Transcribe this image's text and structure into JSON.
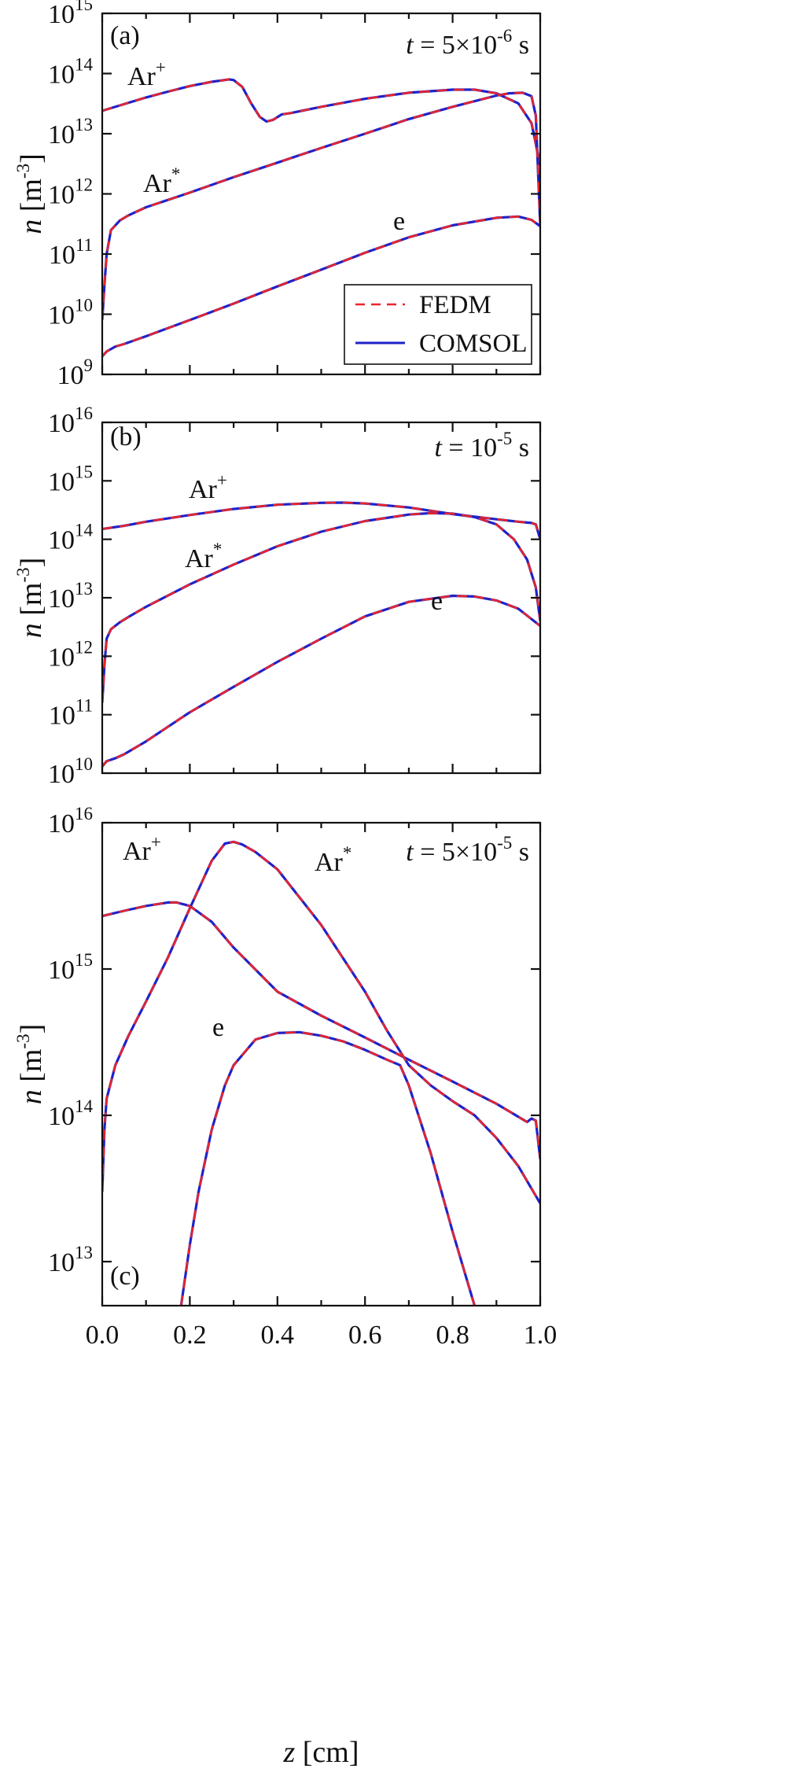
{
  "legend": {
    "entries": [
      {
        "label": "FEDM",
        "color": "#e8242c",
        "style": "dashed"
      },
      {
        "label": "COMSOL",
        "color": "#1f22c8",
        "style": "solid"
      }
    ]
  },
  "x_axis": {
    "label_italic": "z",
    "label_unit": " [cm]",
    "ticks": [
      "0.0",
      "0.2",
      "0.4",
      "0.6",
      "0.8",
      "1.0"
    ]
  },
  "chart_data": [
    {
      "type": "line",
      "panel_label": "(a)",
      "time_label": {
        "t": "t",
        "eq": " = 5×10",
        "exp": "-6",
        "unit": "  s"
      },
      "ylabel": {
        "italic": "n",
        "unit": " [m",
        "exp": "-3",
        "close": "]"
      },
      "xlabel": "z [cm]",
      "xlim": [
        0,
        1
      ],
      "ylim": [
        1000000000.0,
        1000000000000000.0
      ],
      "yscale": "log",
      "ytick_exponents": [
        9,
        10,
        11,
        12,
        13,
        14,
        15
      ],
      "legend_position": "bottom-right",
      "series": [
        {
          "name": "Ar+",
          "label_base": "Ar",
          "label_sup": "+",
          "x": [
            0,
            0.05,
            0.1,
            0.15,
            0.2,
            0.25,
            0.29,
            0.3,
            0.32,
            0.34,
            0.36,
            0.375,
            0.39,
            0.41,
            0.43,
            0.5,
            0.6,
            0.7,
            0.8,
            0.85,
            0.9,
            0.95,
            0.98,
            1.0
          ],
          "y": [
            24000000000000.0,
            31000000000000.0,
            40000000000000.0,
            50000000000000.0,
            62000000000000.0,
            73000000000000.0,
            80000000000000.0,
            78000000000000.0,
            60000000000000.0,
            32000000000000.0,
            19000000000000.0,
            16000000000000.0,
            17000000000000.0,
            21000000000000.0,
            22000000000000.0,
            28000000000000.0,
            38000000000000.0,
            48000000000000.0,
            54000000000000.0,
            54000000000000.0,
            47000000000000.0,
            32000000000000.0,
            15000000000000.0,
            3000000000000.0
          ]
        },
        {
          "name": "Ar*",
          "label_base": "Ar",
          "label_sup": "*",
          "x": [
            0,
            0.005,
            0.01,
            0.02,
            0.04,
            0.06,
            0.1,
            0.2,
            0.3,
            0.4,
            0.5,
            0.6,
            0.7,
            0.8,
            0.9,
            0.93,
            0.96,
            0.98,
            0.99,
            1.0
          ],
          "y": [
            8000000000.0,
            30000000000.0,
            100000000000.0,
            250000000000.0,
            360000000000.0,
            440000000000.0,
            600000000000.0,
            1050000000000.0,
            1900000000000.0,
            3300000000000.0,
            5800000000000.0,
            10000000000000.0,
            17500000000000.0,
            28000000000000.0,
            43000000000000.0,
            47000000000000.0,
            48000000000000.0,
            42000000000000.0,
            20000000000000.0,
            300000000000.0
          ]
        },
        {
          "name": "e",
          "label_base": "e",
          "label_sup": "",
          "x": [
            0,
            0.01,
            0.03,
            0.05,
            0.1,
            0.2,
            0.3,
            0.4,
            0.5,
            0.6,
            0.7,
            0.8,
            0.9,
            0.95,
            0.98,
            1.0
          ],
          "y": [
            2000000000.0,
            2400000000.0,
            2900000000.0,
            3200000000.0,
            4300000000.0,
            8000000000.0,
            15000000000.0,
            29000000000.0,
            55000000000.0,
            105000000000.0,
            190000000000.0,
            300000000000.0,
            400000000000.0,
            420000000000.0,
            370000000000.0,
            290000000000.0
          ]
        }
      ]
    },
    {
      "type": "line",
      "panel_label": "(b)",
      "time_label": {
        "t": "t",
        "eq": " = 10",
        "exp": "-5",
        "unit": " s"
      },
      "ylabel": {
        "italic": "n",
        "unit": " [m",
        "exp": "-3",
        "close": "]"
      },
      "xlabel": "z [cm]",
      "xlim": [
        0,
        1
      ],
      "ylim": [
        10000000000.0,
        1e+16
      ],
      "yscale": "log",
      "ytick_exponents": [
        10,
        11,
        12,
        13,
        14,
        15,
        16
      ],
      "series": [
        {
          "name": "Ar+",
          "label_base": "Ar",
          "label_sup": "+",
          "x": [
            0,
            0.05,
            0.1,
            0.2,
            0.3,
            0.4,
            0.5,
            0.55,
            0.6,
            0.7,
            0.8,
            0.9,
            0.95,
            0.98,
            0.99,
            1.0
          ],
          "y": [
            150000000000000.0,
            170000000000000.0,
            200000000000000.0,
            260000000000000.0,
            330000000000000.0,
            390000000000000.0,
            420000000000000.0,
            425000000000000.0,
            410000000000000.0,
            350000000000000.0,
            270000000000000.0,
            220000000000000.0,
            200000000000000.0,
            190000000000000.0,
            180000000000000.0,
            100000000000000.0
          ]
        },
        {
          "name": "Ar*",
          "label_base": "Ar",
          "label_sup": "*",
          "x": [
            0,
            0.005,
            0.01,
            0.02,
            0.04,
            0.06,
            0.1,
            0.2,
            0.3,
            0.4,
            0.5,
            0.6,
            0.7,
            0.75,
            0.8,
            0.85,
            0.9,
            0.94,
            0.97,
            0.99,
            1.0
          ],
          "y": [
            160000000000.0,
            700000000000.0,
            2000000000000.0,
            2900000000000.0,
            3800000000000.0,
            4700000000000.0,
            7000000000000.0,
            17000000000000.0,
            37000000000000.0,
            76000000000000.0,
            135000000000000.0,
            205000000000000.0,
            265000000000000.0,
            280000000000000.0,
            275000000000000.0,
            240000000000000.0,
            180000000000000.0,
            100000000000000.0,
            45000000000000.0,
            15000000000000.0,
            4000000000000.0
          ]
        },
        {
          "name": "e",
          "label_base": "e",
          "label_sup": "",
          "x": [
            0,
            0.01,
            0.03,
            0.05,
            0.1,
            0.2,
            0.3,
            0.4,
            0.5,
            0.6,
            0.7,
            0.8,
            0.85,
            0.9,
            0.95,
            1.0
          ],
          "y": [
            13000000000.0,
            16000000000.0,
            18000000000.0,
            21000000000.0,
            35000000000.0,
            110000000000.0,
            300000000000.0,
            800000000000.0,
            2000000000000.0,
            4800000000000.0,
            8500000000000.0,
            10800000000000.0,
            10500000000000.0,
            9000000000000.0,
            6500000000000.0,
            3300000000000.0
          ]
        }
      ]
    },
    {
      "type": "line",
      "panel_label": "(c)",
      "time_label": {
        "t": "t",
        "eq": " = 5×10",
        "exp": "-5",
        "unit": " s"
      },
      "ylabel": {
        "italic": "n",
        "unit": " [m",
        "exp": "-3",
        "close": "]"
      },
      "xlabel": "z [cm]",
      "xlim": [
        0,
        1
      ],
      "ylim": [
        5000000000000.0,
        1e+16
      ],
      "yscale": "log",
      "ytick_exponents": [
        13,
        14,
        15,
        16
      ],
      "series": [
        {
          "name": "Ar+",
          "label_base": "Ar",
          "label_sup": "+",
          "x": [
            0,
            0.05,
            0.1,
            0.15,
            0.17,
            0.2,
            0.25,
            0.3,
            0.4,
            0.5,
            0.6,
            0.7,
            0.8,
            0.9,
            0.97,
            0.98,
            0.99,
            1.0
          ],
          "y": [
            2300000000000000.0,
            2500000000000000.0,
            2700000000000000.0,
            2850000000000000.0,
            2850000000000000.0,
            2700000000000000.0,
            2100000000000000.0,
            1400000000000000.0,
            700000000000000.0,
            480000000000000.0,
            340000000000000.0,
            240000000000000.0,
            170000000000000.0,
            120000000000000.0,
            90000000000000.0,
            95000000000000.0,
            92000000000000.0,
            50000000000000.0
          ]
        },
        {
          "name": "Ar*",
          "label_base": "Ar",
          "label_sup": "*",
          "x": [
            0,
            0.005,
            0.01,
            0.03,
            0.06,
            0.1,
            0.15,
            0.2,
            0.25,
            0.28,
            0.3,
            0.32,
            0.35,
            0.4,
            0.5,
            0.6,
            0.65,
            0.7,
            0.75,
            0.8,
            0.85,
            0.9,
            0.95,
            1.0
          ],
          "y": [
            30000000000000.0,
            80000000000000.0,
            130000000000000.0,
            220000000000000.0,
            350000000000000.0,
            600000000000000.0,
            1200000000000000.0,
            2600000000000000.0,
            5500000000000000.0,
            7200000000000000.0,
            7400000000000000.0,
            7100000000000000.0,
            6300000000000000.0,
            4800000000000000.0,
            2000000000000000.0,
            700000000000000.0,
            380000000000000.0,
            220000000000000.0,
            160000000000000.0,
            125000000000000.0,
            100000000000000.0,
            70000000000000.0,
            45000000000000.0,
            25000000000000.0
          ]
        },
        {
          "name": "e",
          "label_base": "e",
          "label_sup": "",
          "x": [
            0.18,
            0.2,
            0.22,
            0.25,
            0.28,
            0.3,
            0.35,
            0.4,
            0.45,
            0.5,
            0.55,
            0.6,
            0.65,
            0.68,
            0.7,
            0.75,
            0.8,
            0.85
          ],
          "y": [
            5000000000000.0,
            13000000000000.0,
            30000000000000.0,
            80000000000000.0,
            160000000000000.0,
            220000000000000.0,
            330000000000000.0,
            365000000000000.0,
            370000000000000.0,
            350000000000000.0,
            320000000000000.0,
            280000000000000.0,
            240000000000000.0,
            220000000000000.0,
            160000000000000.0,
            55000000000000.0,
            16000000000000.0,
            5000000000000.0
          ]
        }
      ]
    }
  ]
}
